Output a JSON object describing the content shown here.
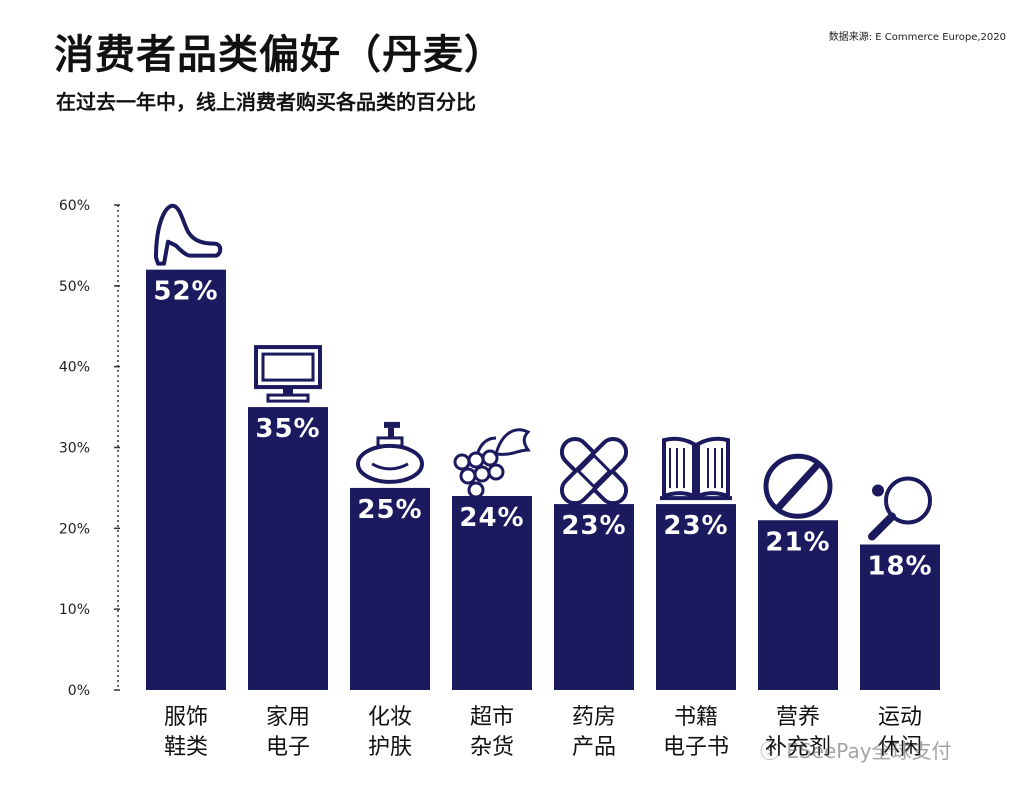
{
  "header": {
    "title": "消费者品类偏好（丹麦）",
    "subtitle": "在过去一年中，线上消费者购买各品类的百分比",
    "source": "数据来源:  E Commerce Europe,2020"
  },
  "watermark": "ⓢ ESeePay全球支付",
  "colors": {
    "bar": "#1c1a5e"
  },
  "chart_data": {
    "type": "bar",
    "title": "消费者品类偏好（丹麦）",
    "subtitle": "在过去一年中，线上消费者购买各品类的百分比",
    "categories": [
      [
        "服饰",
        "鞋类"
      ],
      [
        "家用",
        "电子"
      ],
      [
        "化妆",
        "护肤"
      ],
      [
        "超市",
        "杂货"
      ],
      [
        "药房",
        "产品"
      ],
      [
        "书籍",
        "电子书"
      ],
      [
        "营养",
        "补充剂"
      ],
      [
        "运动",
        "休闲"
      ]
    ],
    "values": [
      52,
      35,
      25,
      24,
      23,
      23,
      21,
      18
    ],
    "value_labels": [
      "52%",
      "35%",
      "25%",
      "24%",
      "23%",
      "23%",
      "21%",
      "18%"
    ],
    "icons": [
      "high-heel-icon",
      "monitor-icon",
      "perfume-bottle-icon",
      "grapes-icon",
      "bandage-icon",
      "open-book-icon",
      "pill-icon",
      "ping-pong-icon"
    ],
    "ylim": [
      0,
      60
    ],
    "yticks": [
      0,
      10,
      20,
      30,
      40,
      50,
      60
    ],
    "ytick_labels": [
      "0%",
      "10%",
      "20%",
      "30%",
      "40%",
      "50%",
      "60%"
    ],
    "grid": false,
    "legend": "none"
  }
}
